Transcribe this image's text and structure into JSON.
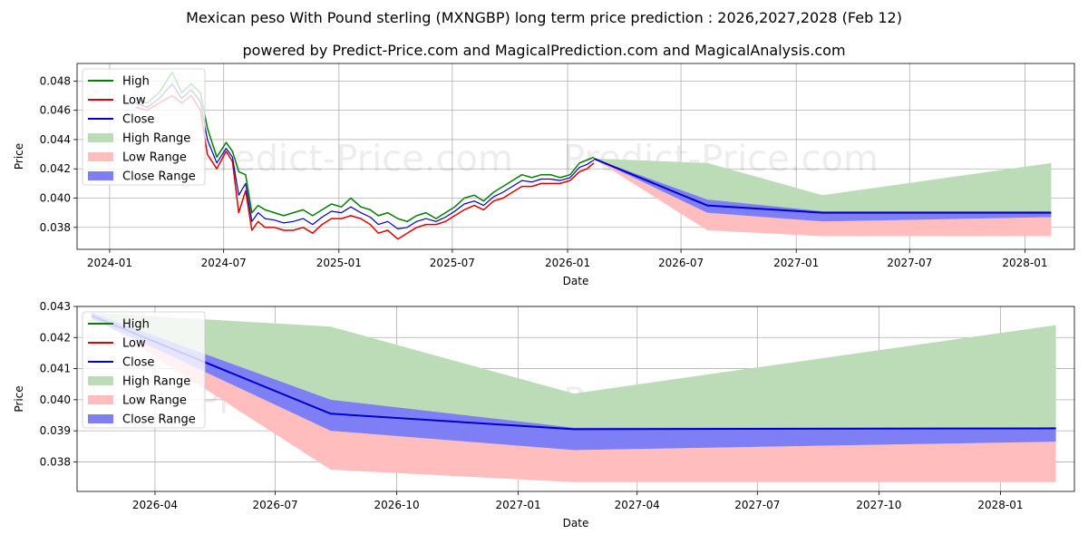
{
  "page": {
    "title": "Mexican peso With Pound sterling (MXNGBP) long term price prediction : 2026,2027,2028 (Feb 12)",
    "subtitle": "powered by Predict-Price.com and MagicalPrediction.com and MagicalAnalysis.com",
    "watermark": "Predict-Price.com"
  },
  "colors": {
    "high": "#008000",
    "low": "#e00000",
    "close": "#0000cc",
    "high_range": "#bcdcb7",
    "low_range": "#ffbdbd",
    "close_range": "#7f7ff5",
    "grid": "#b0b0b0"
  },
  "chart_data": [
    {
      "type": "line",
      "xlabel": "Date",
      "ylabel": "Price",
      "xlim": [
        "2023-11-10",
        "2028-03-20"
      ],
      "ylim": [
        0.0365,
        0.0492
      ],
      "x_ticks": [
        "2024-01",
        "2024-07",
        "2025-01",
        "2025-07",
        "2026-01",
        "2026-07",
        "2027-01",
        "2027-07",
        "2028-01"
      ],
      "y_ticks": [
        0.038,
        0.04,
        0.042,
        0.044,
        0.046,
        0.048
      ],
      "legend": [
        "High",
        "Low",
        "Close",
        "High Range",
        "Low Range",
        "Close Range"
      ],
      "legend_position": "top-left",
      "grid": true,
      "history": {
        "dates": [
          "2024-02-12",
          "2024-03-01",
          "2024-03-20",
          "2024-04-10",
          "2024-04-25",
          "2024-05-10",
          "2024-05-25",
          "2024-06-05",
          "2024-06-20",
          "2024-07-05",
          "2024-07-15",
          "2024-07-25",
          "2024-08-05",
          "2024-08-15",
          "2024-08-25",
          "2024-09-05",
          "2024-09-20",
          "2024-10-05",
          "2024-10-20",
          "2024-11-05",
          "2024-11-20",
          "2024-12-05",
          "2024-12-20",
          "2025-01-05",
          "2025-01-20",
          "2025-02-05",
          "2025-02-20",
          "2025-03-05",
          "2025-03-20",
          "2025-04-05",
          "2025-04-20",
          "2025-05-05",
          "2025-05-20",
          "2025-06-05",
          "2025-06-20",
          "2025-07-05",
          "2025-07-20",
          "2025-08-05",
          "2025-08-20",
          "2025-09-05",
          "2025-09-20",
          "2025-10-05",
          "2025-10-20",
          "2025-11-05",
          "2025-11-20",
          "2025-12-05",
          "2025-12-20",
          "2026-01-05",
          "2026-01-20",
          "2026-02-01",
          "2026-02-12"
        ],
        "high": [
          0.0468,
          0.0465,
          0.0472,
          0.0486,
          0.0472,
          0.0478,
          0.0472,
          0.0448,
          0.0428,
          0.0438,
          0.0432,
          0.0418,
          0.0416,
          0.039,
          0.0395,
          0.0392,
          0.039,
          0.0388,
          0.039,
          0.0392,
          0.0388,
          0.0392,
          0.0396,
          0.0394,
          0.04,
          0.0394,
          0.0392,
          0.0388,
          0.039,
          0.0386,
          0.0384,
          0.0388,
          0.039,
          0.0386,
          0.039,
          0.0394,
          0.04,
          0.0402,
          0.0398,
          0.0404,
          0.0408,
          0.0412,
          0.0416,
          0.0414,
          0.0416,
          0.0416,
          0.0414,
          0.0416,
          0.0424,
          0.0426,
          0.0428
        ],
        "low": [
          0.0462,
          0.046,
          0.0465,
          0.047,
          0.0465,
          0.047,
          0.046,
          0.043,
          0.042,
          0.0432,
          0.0425,
          0.039,
          0.0405,
          0.0378,
          0.0384,
          0.038,
          0.038,
          0.0378,
          0.0378,
          0.038,
          0.0376,
          0.0382,
          0.0386,
          0.0386,
          0.0388,
          0.0386,
          0.0382,
          0.0376,
          0.0378,
          0.0372,
          0.0376,
          0.038,
          0.0382,
          0.0382,
          0.0384,
          0.0388,
          0.0392,
          0.0395,
          0.0392,
          0.0398,
          0.04,
          0.0404,
          0.0408,
          0.0408,
          0.041,
          0.041,
          0.041,
          0.0412,
          0.0418,
          0.042,
          0.0424
        ],
        "close": [
          0.0465,
          0.0462,
          0.0468,
          0.0478,
          0.0468,
          0.0474,
          0.0466,
          0.044,
          0.0424,
          0.0434,
          0.0428,
          0.0402,
          0.041,
          0.0384,
          0.039,
          0.0386,
          0.0385,
          0.0383,
          0.0384,
          0.0386,
          0.0382,
          0.0387,
          0.0391,
          0.039,
          0.0394,
          0.039,
          0.0387,
          0.0382,
          0.0384,
          0.0379,
          0.038,
          0.0384,
          0.0386,
          0.0384,
          0.0387,
          0.0391,
          0.0396,
          0.0398,
          0.0395,
          0.0401,
          0.0404,
          0.0408,
          0.0412,
          0.0411,
          0.0413,
          0.0413,
          0.0412,
          0.0414,
          0.0421,
          0.0423,
          0.0426
        ]
      },
      "forecast": {
        "dates": [
          "2026-02-12",
          "2026-08-12",
          "2027-02-12",
          "2028-02-12"
        ],
        "high_range_upper": [
          0.0427,
          0.0424,
          0.0402,
          0.0424
        ],
        "low_range_lower": [
          0.0427,
          0.0378,
          0.0374,
          0.0374
        ],
        "close_range_upper": [
          0.0427,
          0.0399,
          0.0391,
          0.0391
        ],
        "close_range_lower": [
          0.0427,
          0.039,
          0.0384,
          0.0387
        ],
        "close": [
          0.0427,
          0.0395,
          0.039,
          0.039
        ]
      }
    },
    {
      "type": "line",
      "xlabel": "Date",
      "ylabel": "Price",
      "xlim": [
        "2026-02-01",
        "2028-02-26"
      ],
      "ylim": [
        0.03705,
        0.043
      ],
      "x_ticks": [
        "2026-04",
        "2026-07",
        "2026-10",
        "2027-01",
        "2027-04",
        "2027-07",
        "2027-10",
        "2028-01"
      ],
      "y_ticks": [
        0.038,
        0.039,
        0.04,
        0.041,
        0.042,
        0.043
      ],
      "legend": [
        "High",
        "Low",
        "Close",
        "High Range",
        "Low Range",
        "Close Range"
      ],
      "legend_position": "top-left",
      "grid": true,
      "forecast": {
        "dates": [
          "2026-02-12",
          "2026-08-12",
          "2027-02-12",
          "2028-02-12"
        ],
        "high_range_upper": [
          0.0428,
          0.04235,
          0.0402,
          0.0424
        ],
        "low_range_lower": [
          0.0427,
          0.03775,
          0.03735,
          0.03735
        ],
        "close_range_upper": [
          0.0428,
          0.04,
          0.0391,
          0.0391
        ],
        "close_range_lower": [
          0.0426,
          0.039,
          0.03838,
          0.03865
        ],
        "close": [
          0.0427,
          0.03955,
          0.03905,
          0.03908
        ]
      }
    }
  ]
}
